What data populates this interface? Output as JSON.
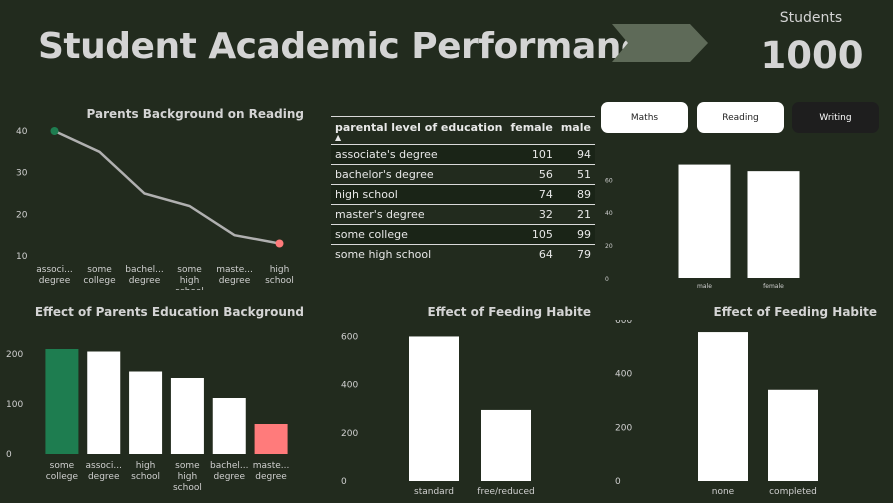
{
  "header": {
    "title": "Student Academic Performance",
    "kpi_label": "Students",
    "kpi_value": "1000"
  },
  "buttons": [
    {
      "label": "Maths",
      "active": false
    },
    {
      "label": "Reading",
      "active": false
    },
    {
      "label": "Writing",
      "active": true
    }
  ],
  "colors": {
    "background": "#222b1e",
    "bar": "#ffffff",
    "highlight_green": "#1e7d50",
    "highlight_red": "#ff7b7b",
    "line": "#b0b0b0",
    "arrow": "#5e6a58"
  },
  "table": {
    "headers": [
      "parental level of education",
      "female",
      "male"
    ],
    "rows": [
      {
        "label": "associate's degree",
        "female": "101",
        "male": "94"
      },
      {
        "label": "bachelor's degree",
        "female": "56",
        "male": "51"
      },
      {
        "label": "high school",
        "female": "74",
        "male": "89"
      },
      {
        "label": "master's degree",
        "female": "32",
        "male": "21"
      },
      {
        "label": "some college",
        "female": "105",
        "male": "99"
      },
      {
        "label": "some high school",
        "female": "64",
        "male": "79"
      }
    ]
  },
  "chart_data": [
    {
      "id": "line",
      "type": "line",
      "title": "Parents Background on Reading",
      "categories": [
        "associ... degree",
        "some college",
        "bachel... degree",
        "some high school",
        "maste... degree",
        "high school"
      ],
      "values": [
        40,
        35,
        25,
        22,
        15,
        13
      ],
      "yticks": [
        10,
        20,
        30,
        40
      ],
      "ylim": [
        10,
        40
      ],
      "first_marker_color": "#1e7d50",
      "last_marker_color": "#ff7b7b"
    },
    {
      "id": "gender",
      "type": "bar",
      "title": "",
      "categories": [
        "male",
        "female"
      ],
      "values": [
        69,
        65
      ],
      "yticks": [
        0,
        20,
        40,
        60
      ],
      "ylim": [
        0,
        73
      ]
    },
    {
      "id": "parents",
      "type": "bar",
      "title": "Effect of Parents Education Background",
      "categories": [
        "some college",
        "associ... degree",
        "high school",
        "some high school",
        "bachel... degree",
        "maste... degree"
      ],
      "values": [
        210,
        205,
        165,
        152,
        112,
        60
      ],
      "yticks": [
        0,
        100,
        200
      ],
      "ylim": [
        0,
        240
      ],
      "bar_colors": [
        "#1e7d50",
        "#ffffff",
        "#ffffff",
        "#ffffff",
        "#ffffff",
        "#ff7b7b"
      ]
    },
    {
      "id": "lunch",
      "type": "bar",
      "title": "Effect of Feeding Habite",
      "categories": [
        "standard",
        "free/reduced"
      ],
      "values": [
        600,
        295
      ],
      "yticks": [
        0,
        200,
        400,
        600
      ],
      "ylim": [
        0,
        660
      ]
    },
    {
      "id": "prep",
      "type": "bar",
      "title": "Effect of Feeding Habite",
      "categories": [
        "none",
        "completed"
      ],
      "values": [
        555,
        340
      ],
      "yticks": [
        0,
        200,
        400,
        600
      ],
      "ylim": [
        0,
        600
      ]
    }
  ]
}
